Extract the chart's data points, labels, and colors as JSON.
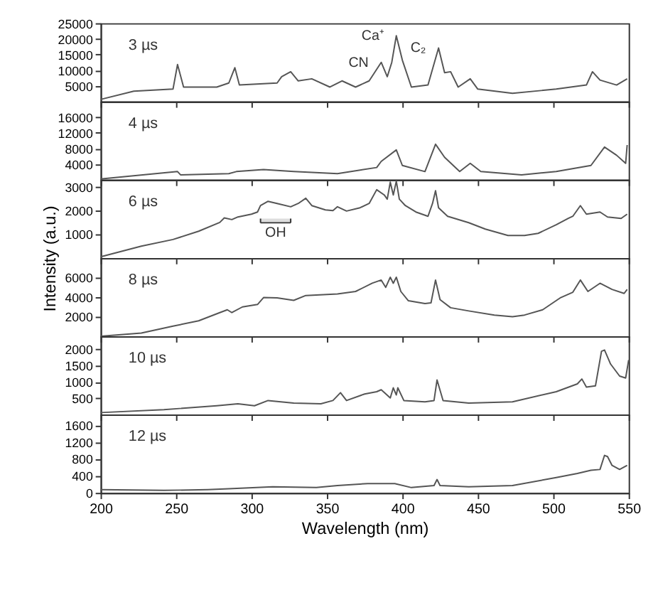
{
  "chart_data": [
    {
      "type": "line",
      "xlim": [
        200,
        550
      ],
      "xticks": [
        200,
        250,
        300,
        350,
        400,
        450,
        500,
        550
      ],
      "ylim": [
        0,
        25000
      ],
      "yticks": [
        5000,
        10000,
        15000,
        20000,
        25000
      ],
      "tick_labels": "y",
      "grid": false,
      "marker": "none",
      "line_style": "solid",
      "annotations": [
        "3 µs",
        {
          "text": "Ca⁺",
          "x": 396,
          "y": 21000
        },
        {
          "text": "CN",
          "x": 386,
          "y": 12500
        },
        {
          "text": "C₂",
          "x": 424,
          "y": 17100
        }
      ],
      "series": [
        {
          "color": "#555555",
          "x": [
            200,
            222,
            248,
            251,
            255,
            277,
            285,
            289,
            292,
            317,
            320,
            326,
            331,
            340,
            352,
            360,
            369,
            378,
            386,
            390,
            393,
            396,
            400,
            406,
            417,
            424,
            428,
            432,
            437,
            445,
            450,
            473,
            502,
            522,
            526,
            531,
            542,
            549
          ],
          "values": [
            660,
            3290,
            3950,
            11800,
            4600,
            4600,
            5900,
            10800,
            5260,
            5900,
            7900,
            9500,
            6580,
            7240,
            4600,
            6580,
            4600,
            6580,
            12500,
            7900,
            12500,
            21000,
            13200,
            4600,
            5260,
            17100,
            9210,
            9500,
            4600,
            7240,
            3950,
            2630,
            3950,
            5260,
            9500,
            6840,
            5260,
            7240
          ]
        }
      ]
    },
    {
      "type": "line",
      "xlim": [
        200,
        550
      ],
      "xticks": [
        200,
        250,
        300,
        350,
        400,
        450,
        500,
        550
      ],
      "ylim": [
        0,
        20000
      ],
      "yticks": [
        4000,
        8000,
        12000,
        16000
      ],
      "tick_labels": "y",
      "grid": false,
      "marker": "none",
      "line_style": "solid",
      "annotations": [
        "4 µs"
      ],
      "series": [
        {
          "color": "#555555",
          "x": [
            200,
            251,
            253,
            285,
            290,
            308,
            328,
            357,
            383,
            386,
            396,
            400,
            415,
            422,
            428,
            438,
            445,
            452,
            479,
            502,
            525,
            534,
            542,
            548,
            549
          ],
          "values": [
            210,
            2090,
            1250,
            1570,
            2090,
            2610,
            2090,
            1570,
            3130,
            4700,
            7620,
            3650,
            2090,
            9080,
            5740,
            2090,
            4180,
            2090,
            1250,
            2090,
            3650,
            8350,
            6260,
            4180,
            8870
          ]
        }
      ]
    },
    {
      "type": "line",
      "xlim": [
        200,
        550
      ],
      "xticks": [
        200,
        250,
        300,
        350,
        400,
        450,
        500,
        550
      ],
      "ylim": [
        0,
        3300
      ],
      "yticks": [
        1000,
        2000,
        3000
      ],
      "tick_labels": "y",
      "grid": false,
      "marker": "none",
      "line_style": "solid",
      "ylabel": "Intensity (a.u.)",
      "annotations": [
        "6 µs"
      ],
      "bands": [
        {
          "axis": "x",
          "from": 306,
          "to": 326,
          "label": "OH"
        }
      ],
      "series": [
        {
          "color": "#555555",
          "x": [
            200,
            227,
            248,
            265,
            279,
            282,
            287,
            291,
            300,
            304,
            306,
            311,
            317,
            326,
            331,
            336,
            340,
            349,
            354,
            357,
            363,
            372,
            378,
            383,
            388,
            390,
            392,
            394,
            396,
            398,
            402,
            409,
            417,
            420,
            422,
            424,
            430,
            444,
            455,
            470,
            481,
            490,
            502,
            510,
            513,
            518,
            522,
            531,
            536,
            545,
            549
          ],
          "values": [
            50,
            500,
            780,
            1130,
            1500,
            1690,
            1620,
            1730,
            1850,
            1940,
            2210,
            2390,
            2300,
            2160,
            2300,
            2520,
            2210,
            2030,
            2000,
            2160,
            1980,
            2120,
            2300,
            2880,
            2660,
            2480,
            3200,
            2660,
            3240,
            2480,
            2210,
            1940,
            1760,
            2300,
            2840,
            2120,
            1760,
            1490,
            1220,
            950,
            950,
            1040,
            1400,
            1670,
            1760,
            2210,
            1850,
            1940,
            1730,
            1670,
            1850
          ]
        }
      ]
    },
    {
      "type": "line",
      "xlim": [
        200,
        550
      ],
      "xticks": [
        200,
        250,
        300,
        350,
        400,
        450,
        500,
        550
      ],
      "ylim": [
        0,
        8000
      ],
      "yticks": [
        2000,
        4000,
        6000
      ],
      "tick_labels": "y",
      "grid": false,
      "marker": "none",
      "line_style": "solid",
      "annotations": [
        "8 µs"
      ],
      "series": [
        {
          "color": "#555555",
          "x": [
            200,
            227,
            248,
            265,
            279,
            284,
            287,
            294,
            304,
            308,
            317,
            328,
            336,
            357,
            369,
            380,
            386,
            389,
            392,
            394,
            396,
            399,
            404,
            415,
            419,
            422,
            425,
            432,
            444,
            461,
            473,
            481,
            493,
            505,
            513,
            518,
            523,
            531,
            539,
            547,
            549
          ],
          "values": [
            0,
            330,
            1040,
            1580,
            2420,
            2710,
            2420,
            3000,
            3250,
            3960,
            3920,
            3670,
            4170,
            4330,
            4580,
            5420,
            5750,
            5000,
            6040,
            5420,
            6040,
            4580,
            3630,
            3340,
            3420,
            5750,
            3750,
            2920,
            2590,
            2170,
            2000,
            2170,
            2710,
            3960,
            4500,
            5750,
            4580,
            5420,
            4790,
            4380,
            4790
          ]
        }
      ]
    },
    {
      "type": "line",
      "xlim": [
        200,
        550
      ],
      "xticks": [
        200,
        250,
        300,
        350,
        400,
        450,
        500,
        550
      ],
      "ylim": [
        0,
        2400
      ],
      "yticks": [
        500,
        1000,
        1500,
        2000
      ],
      "tick_labels": "y",
      "grid": false,
      "marker": "none",
      "line_style": "solid",
      "annotations": [
        "10 µs"
      ],
      "series": [
        {
          "color": "#555555",
          "x": [
            200,
            242,
            277,
            291,
            302,
            311,
            328,
            346,
            354,
            359,
            363,
            375,
            383,
            386,
            392,
            394,
            396,
            397,
            401,
            415,
            421,
            423,
            427,
            444,
            473,
            502,
            516,
            519,
            522,
            528,
            532,
            534,
            538,
            544,
            548,
            550
          ],
          "values": [
            60,
            150,
            270,
            330,
            270,
            430,
            350,
            330,
            430,
            670,
            430,
            630,
            700,
            760,
            510,
            820,
            600,
            820,
            430,
            390,
            430,
            1060,
            430,
            350,
            390,
            700,
            940,
            1090,
            840,
            880,
            1940,
            1980,
            1550,
            1180,
            1120,
            1670
          ]
        }
      ]
    },
    {
      "type": "line",
      "xlim": [
        200,
        550
      ],
      "xticks": [
        200,
        250,
        300,
        350,
        400,
        450,
        500,
        550
      ],
      "ylim": [
        0,
        1850
      ],
      "yticks": [
        0,
        400,
        800,
        1200,
        1600
      ],
      "grid": false,
      "marker": "none",
      "line_style": "solid",
      "xlabel": "Wavelength (nm)",
      "annotations": [
        "12 µs"
      ],
      "series": [
        {
          "color": "#555555",
          "x": [
            200,
            242,
            271,
            285,
            314,
            343,
            357,
            377,
            395,
            406,
            421,
            423,
            425,
            444,
            473,
            502,
            516,
            525,
            531,
            534,
            536,
            539,
            544,
            549
          ],
          "values": [
            76,
            57,
            76,
            95,
            143,
            124,
            171,
            219,
            219,
            124,
            171,
            314,
            171,
            143,
            171,
            362,
            457,
            533,
            552,
            885,
            857,
            647,
            552,
            647
          ]
        }
      ]
    }
  ]
}
